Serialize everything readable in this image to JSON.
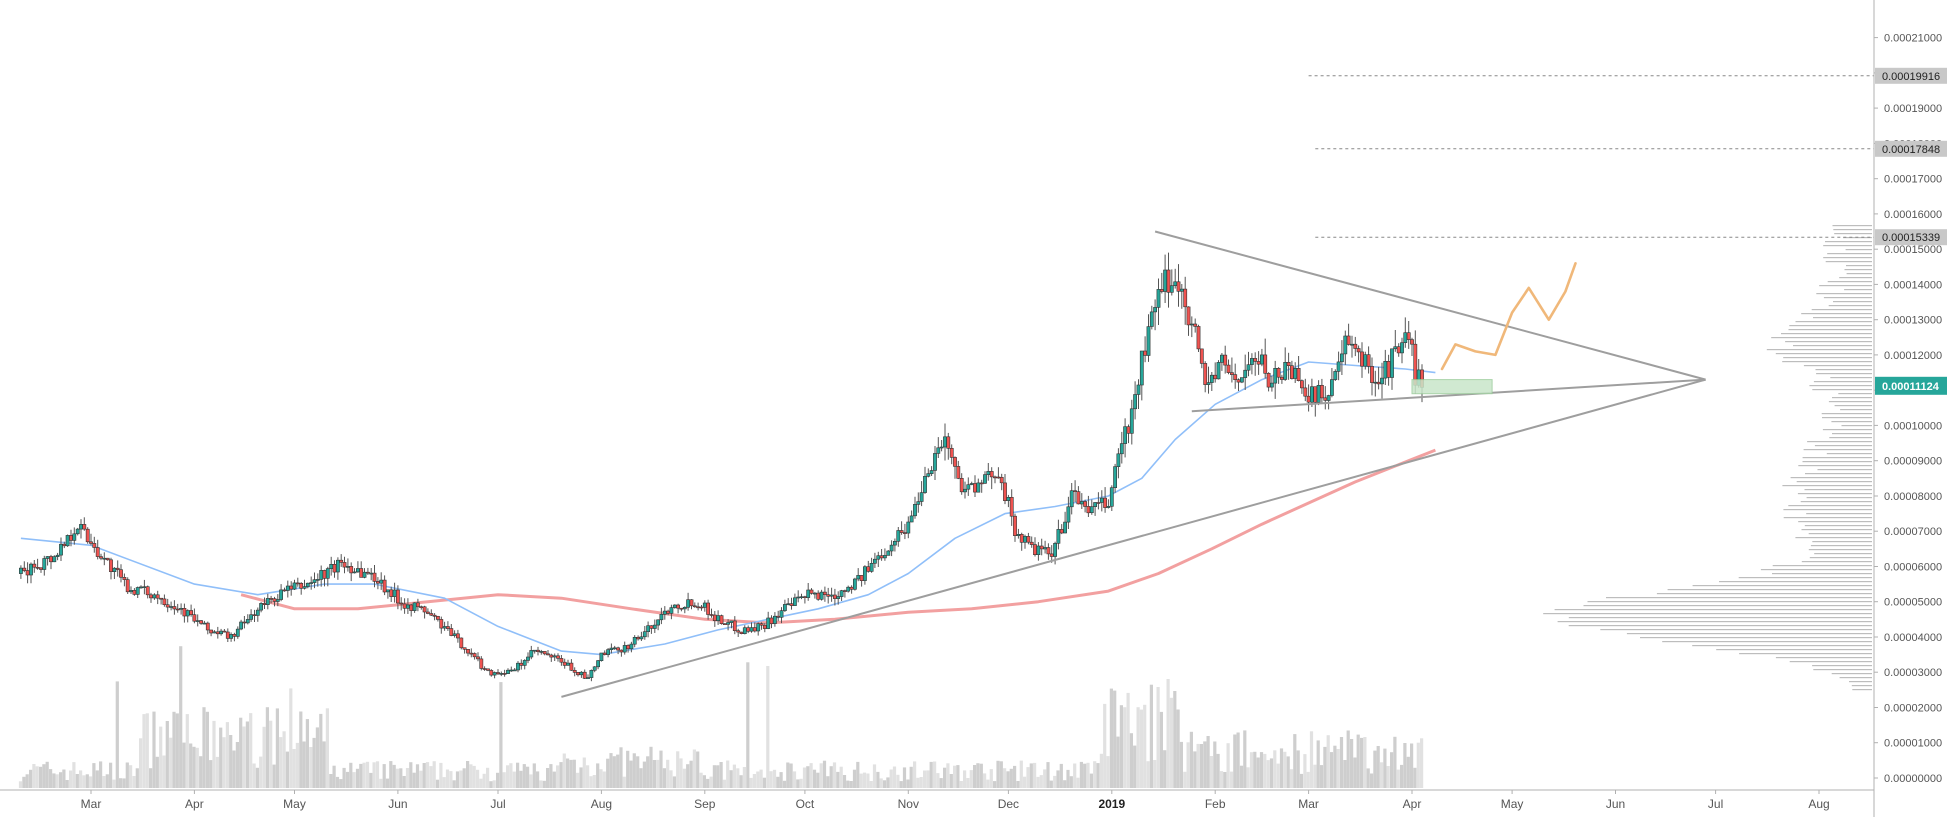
{
  "chart_data": {
    "type": "candlestick",
    "price_axis": {
      "ticks": [
        "0.00021000",
        "0.00020000",
        "0.00019000",
        "0.00018000",
        "0.00017000",
        "0.00016000",
        "0.00015000",
        "0.00014000",
        "0.00013000",
        "0.00012000",
        "0.00011000",
        "0.00010000",
        "0.00009000",
        "0.00008000",
        "0.00007000",
        "0.00006000",
        "0.00005000",
        "0.00004000",
        "0.00003000",
        "0.00002000",
        "0.00001000",
        "0.00000000"
      ],
      "range": [
        0,
        0.000215
      ]
    },
    "time_axis": {
      "ticks": [
        {
          "label": "Mar",
          "date": "2018-03-01"
        },
        {
          "label": "Apr",
          "date": "2018-04-01"
        },
        {
          "label": "May",
          "date": "2018-05-01"
        },
        {
          "label": "Jun",
          "date": "2018-06-01"
        },
        {
          "label": "Jul",
          "date": "2018-07-01"
        },
        {
          "label": "Aug",
          "date": "2018-08-01"
        },
        {
          "label": "Sep",
          "date": "2018-09-01"
        },
        {
          "label": "Oct",
          "date": "2018-10-01"
        },
        {
          "label": "Nov",
          "date": "2018-11-01"
        },
        {
          "label": "Dec",
          "date": "2018-12-01"
        },
        {
          "label": "2019",
          "date": "2019-01-01",
          "bold": true
        },
        {
          "label": "Feb",
          "date": "2019-02-01"
        },
        {
          "label": "Mar",
          "date": "2019-03-01"
        },
        {
          "label": "Apr",
          "date": "2019-04-01"
        },
        {
          "label": "May",
          "date": "2019-05-01"
        },
        {
          "label": "Jun",
          "date": "2019-06-01"
        },
        {
          "label": "Jul",
          "date": "2019-07-01"
        },
        {
          "label": "Aug",
          "date": "2019-08-01"
        }
      ]
    },
    "price_path": [
      [
        "2018-02-08",
        5.8e-05
      ],
      [
        "2018-02-18",
        6.3e-05
      ],
      [
        "2018-02-25",
        7.2e-05
      ],
      [
        "2018-03-05",
        6.2e-05
      ],
      [
        "2018-03-12",
        5.4e-05
      ],
      [
        "2018-03-20",
        5.2e-05
      ],
      [
        "2018-03-28",
        4.8e-05
      ],
      [
        "2018-04-05",
        4.2e-05
      ],
      [
        "2018-04-12",
        4e-05
      ],
      [
        "2018-04-20",
        4.8e-05
      ],
      [
        "2018-04-28",
        5.3e-05
      ],
      [
        "2018-05-05",
        5.5e-05
      ],
      [
        "2018-05-15",
        6.1e-05
      ],
      [
        "2018-05-25",
        5.7e-05
      ],
      [
        "2018-06-02",
        5e-05
      ],
      [
        "2018-06-10",
        4.7e-05
      ],
      [
        "2018-06-20",
        3.8e-05
      ],
      [
        "2018-06-28",
        3e-05
      ],
      [
        "2018-07-05",
        3e-05
      ],
      [
        "2018-07-12",
        3.6e-05
      ],
      [
        "2018-07-20",
        3.3e-05
      ],
      [
        "2018-07-28",
        2.8e-05
      ],
      [
        "2018-08-01",
        3.5e-05
      ],
      [
        "2018-08-08",
        3.7e-05
      ],
      [
        "2018-08-15",
        4.2e-05
      ],
      [
        "2018-08-22",
        4.9e-05
      ],
      [
        "2018-08-30",
        5e-05
      ],
      [
        "2018-09-05",
        4.5e-05
      ],
      [
        "2018-09-12",
        4.2e-05
      ],
      [
        "2018-09-18",
        4.3e-05
      ],
      [
        "2018-09-25",
        4.8e-05
      ],
      [
        "2018-10-02",
        5.2e-05
      ],
      [
        "2018-10-10",
        5.2e-05
      ],
      [
        "2018-10-18",
        5.7e-05
      ],
      [
        "2018-10-25",
        6.5e-05
      ],
      [
        "2018-11-01",
        7.2e-05
      ],
      [
        "2018-11-07",
        8.8e-05
      ],
      [
        "2018-11-12",
        9.7e-05
      ],
      [
        "2018-11-16",
        8.4e-05
      ],
      [
        "2018-11-22",
        8.2e-05
      ],
      [
        "2018-11-28",
        8.8e-05
      ],
      [
        "2018-12-03",
        7e-05
      ],
      [
        "2018-12-08",
        6.5e-05
      ],
      [
        "2018-12-14",
        6.3e-05
      ],
      [
        "2018-12-20",
        8e-05
      ],
      [
        "2018-12-26",
        7.6e-05
      ],
      [
        "2018-12-31",
        7.8e-05
      ],
      [
        "2019-01-03",
        9.2e-05
      ],
      [
        "2019-01-07",
        0.000103
      ],
      [
        "2019-01-10",
        0.000118
      ],
      [
        "2019-01-14",
        0.000133
      ],
      [
        "2019-01-18",
        0.000142
      ],
      [
        "2019-01-22",
        0.000138
      ],
      [
        "2019-01-25",
        0.00013
      ],
      [
        "2019-01-29",
        0.000112
      ],
      [
        "2019-02-03",
        0.000117
      ],
      [
        "2019-02-08",
        0.000113
      ],
      [
        "2019-02-13",
        0.000119
      ],
      [
        "2019-02-18",
        0.000113
      ],
      [
        "2019-02-23",
        0.000117
      ],
      [
        "2019-02-28",
        0.000111
      ],
      [
        "2019-03-03",
        0.000107
      ],
      [
        "2019-03-08",
        0.000112
      ],
      [
        "2019-03-12",
        0.000122
      ],
      [
        "2019-03-17",
        0.000119
      ],
      [
        "2019-03-22",
        0.000113
      ],
      [
        "2019-03-27",
        0.00012
      ],
      [
        "2019-03-31",
        0.000125
      ],
      [
        "2019-04-02",
        0.000115
      ],
      [
        "2019-04-04",
        0.000111
      ]
    ],
    "price_path_note_unused": "",
    "ma_blue": [
      [
        "2018-02-08",
        6.8e-05
      ],
      [
        "2018-03-01",
        6.6e-05
      ],
      [
        "2018-04-01",
        5.5e-05
      ],
      [
        "2018-04-20",
        5.2e-05
      ],
      [
        "2018-05-10",
        5.5e-05
      ],
      [
        "2018-05-25",
        5.5e-05
      ],
      [
        "2018-06-15",
        5.1e-05
      ],
      [
        "2018-07-01",
        4.3e-05
      ],
      [
        "2018-07-20",
        3.6e-05
      ],
      [
        "2018-08-01",
        3.5e-05
      ],
      [
        "2018-08-20",
        3.8e-05
      ],
      [
        "2018-09-05",
        4.2e-05
      ],
      [
        "2018-09-20",
        4.5e-05
      ],
      [
        "2018-10-05",
        4.8e-05
      ],
      [
        "2018-10-20",
        5.2e-05
      ],
      [
        "2018-11-01",
        5.8e-05
      ],
      [
        "2018-11-15",
        6.8e-05
      ],
      [
        "2018-11-30",
        7.5e-05
      ],
      [
        "2018-12-15",
        7.7e-05
      ],
      [
        "2018-12-31",
        8e-05
      ],
      [
        "2019-01-10",
        8.5e-05
      ],
      [
        "2019-01-20",
        9.6e-05
      ],
      [
        "2019-02-01",
        0.000106
      ],
      [
        "2019-02-15",
        0.000113
      ],
      [
        "2019-03-01",
        0.000118
      ],
      [
        "2019-03-15",
        0.000117
      ],
      [
        "2019-03-30",
        0.000116
      ],
      [
        "2019-04-08",
        0.000115
      ]
    ],
    "ma_red": [
      [
        "2018-04-15",
        5.2e-05
      ],
      [
        "2018-05-01",
        4.8e-05
      ],
      [
        "2018-05-20",
        4.8e-05
      ],
      [
        "2018-06-10",
        5e-05
      ],
      [
        "2018-07-01",
        5.2e-05
      ],
      [
        "2018-07-20",
        5.1e-05
      ],
      [
        "2018-08-10",
        4.8e-05
      ],
      [
        "2018-09-01",
        4.5e-05
      ],
      [
        "2018-09-20",
        4.4e-05
      ],
      [
        "2018-10-10",
        4.5e-05
      ],
      [
        "2018-11-01",
        4.7e-05
      ],
      [
        "2018-11-20",
        4.8e-05
      ],
      [
        "2018-12-10",
        5e-05
      ],
      [
        "2018-12-31",
        5.3e-05
      ],
      [
        "2019-01-15",
        5.8e-05
      ],
      [
        "2019-01-31",
        6.5e-05
      ],
      [
        "2019-02-15",
        7.2e-05
      ],
      [
        "2019-03-01",
        7.8e-05
      ],
      [
        "2019-03-15",
        8.4e-05
      ],
      [
        "2019-03-31",
        9e-05
      ],
      [
        "2019-04-08",
        9.3e-05
      ]
    ],
    "trendlines": [
      {
        "name": "ascending-support",
        "from": [
          "2018-07-20",
          2.3e-05
        ],
        "to": [
          "2019-06-28",
          0.000113
        ]
      },
      {
        "name": "triangle-upper",
        "from": [
          "2019-01-14",
          0.000155
        ],
        "to": [
          "2019-06-28",
          0.000113
        ]
      },
      {
        "name": "triangle-lower",
        "from": [
          "2019-01-25",
          0.000104
        ],
        "to": [
          "2019-06-28",
          0.000113
        ]
      }
    ],
    "horizontal_levels": [
      {
        "value": 0.00019916,
        "label": "0.00019916",
        "from": "2019-03-01"
      },
      {
        "value": 0.00017848,
        "label": "0.00017848",
        "from": "2019-03-03"
      },
      {
        "value": 0.00015339,
        "label": "0.00015339",
        "from": "2019-03-03"
      }
    ],
    "current_price": {
      "value": 0.00011124,
      "label": "0.00011124"
    },
    "support_zone": {
      "from": [
        "2019-04-01",
        0.000109
      ],
      "to": [
        "2019-04-25",
        0.000113
      ]
    },
    "projection_path": [
      [
        "2019-04-10",
        0.000116
      ],
      [
        "2019-04-14",
        0.000123
      ],
      [
        "2019-04-20",
        0.000121
      ],
      [
        "2019-04-26",
        0.00012
      ],
      [
        "2019-05-01",
        0.000132
      ],
      [
        "2019-05-06",
        0.000139
      ],
      [
        "2019-05-12",
        0.00013
      ],
      [
        "2019-05-17",
        0.000138
      ],
      [
        "2019-05-20",
        0.000146
      ]
    ],
    "volume_scale_max": 100,
    "volume_profile_scale_max": 100,
    "colors": {
      "up": "#26a69a",
      "down": "#ef5350",
      "ma_blue": "#90bff9",
      "ma_red": "#f2a0a0",
      "trendline": "#9e9e9e",
      "projection": "#f0b87a",
      "current_price_bg": "#26a69a",
      "level_label_bg": "#c8c8c8",
      "zone_fill": "#c8e6c9",
      "volume": "#c9c9c9",
      "profile": "#bdbdbd"
    },
    "grid": false,
    "legend": "none"
  }
}
